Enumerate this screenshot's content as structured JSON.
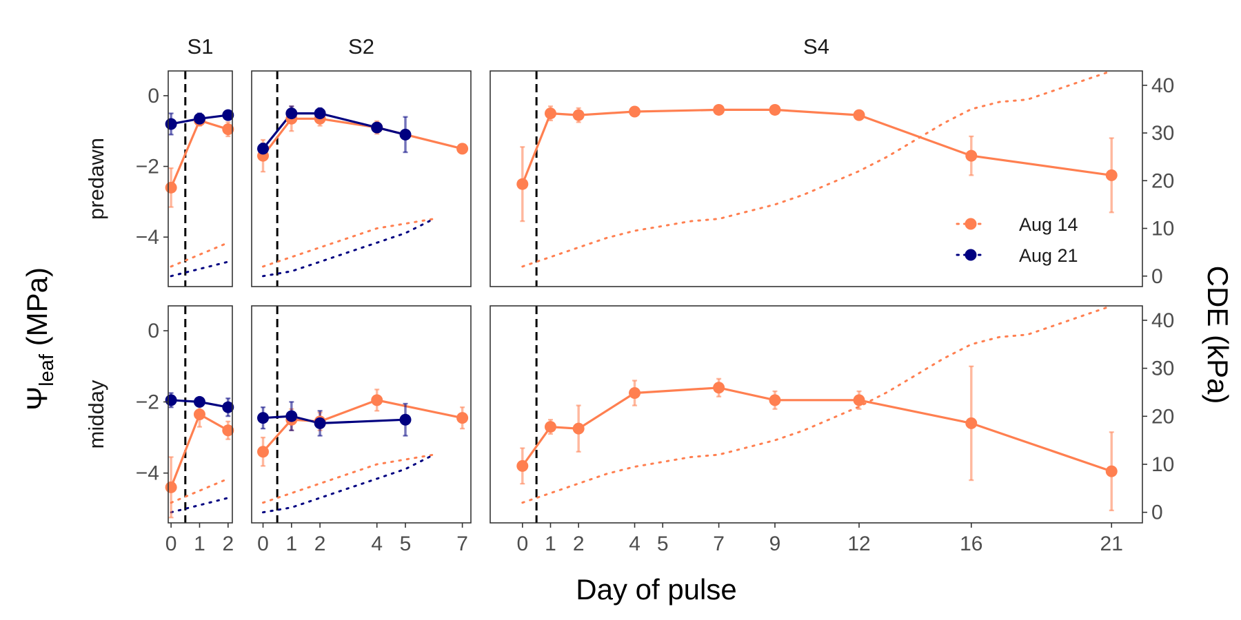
{
  "chart_data": {
    "type": "line",
    "xlabel": "Day of pulse",
    "ylabel": {
      "symbol": "Ψ",
      "subscript": "leaf",
      "unit": " (MPa)"
    },
    "ylabel_right": "CDE (kPa)",
    "ylim_left": [
      -5.4,
      0.7
    ],
    "ylim_right": [
      -2.2,
      43
    ],
    "yticks_left": [
      0,
      -2,
      -4
    ],
    "yticks_right": [
      0,
      10,
      20,
      30,
      40
    ],
    "rows": [
      "predawn",
      "midday"
    ],
    "grid": false,
    "legend_position": "right-inside",
    "legend": [
      {
        "name": "Aug 14",
        "color": "#FF7F50"
      },
      {
        "name": "Aug 21",
        "color": "#000080"
      }
    ],
    "sites": [
      {
        "name": "S1",
        "xlim": [
          -0.1,
          2.15
        ],
        "xticks": [
          0,
          1,
          2
        ],
        "pulse_day": 0.5,
        "series": [
          {
            "name": "Aug 14",
            "color": "#FF7F50",
            "panel": "predawn",
            "x": [
              0,
              1,
              2
            ],
            "y": [
              -2.6,
              -0.7,
              -0.95
            ],
            "err": [
              0.55,
              0.15,
              0.2
            ]
          },
          {
            "name": "Aug 21",
            "color": "#000080",
            "panel": "predawn",
            "x": [
              0,
              1,
              2
            ],
            "y": [
              -0.8,
              -0.65,
              -0.55
            ],
            "err": [
              0.3,
              0.15,
              0.12
            ]
          },
          {
            "name": "Aug 14",
            "color": "#FF7F50",
            "panel": "midday",
            "x": [
              0,
              1,
              2
            ],
            "y": [
              -4.4,
              -2.35,
              -2.8
            ],
            "err": [
              0.85,
              0.35,
              0.25
            ]
          },
          {
            "name": "Aug 21",
            "color": "#000080",
            "panel": "midday",
            "x": [
              0,
              1,
              2
            ],
            "y": [
              -1.95,
              -2.0,
              -2.15
            ],
            "err": [
              0.2,
              0.12,
              0.25
            ]
          }
        ],
        "cde": [
          {
            "name": "Aug 14",
            "color": "#FF7F50",
            "x": [
              0,
              2
            ],
            "y": [
              2,
              7
            ]
          },
          {
            "name": "Aug 21",
            "color": "#000080",
            "x": [
              0,
              2
            ],
            "y": [
              0,
              3
            ]
          }
        ]
      },
      {
        "name": "S2",
        "xlim": [
          -0.4,
          7.3
        ],
        "xticks": [
          0,
          1,
          2,
          4,
          5,
          7
        ],
        "pulse_day": 0.5,
        "series": [
          {
            "name": "Aug 14",
            "color": "#FF7F50",
            "panel": "predawn",
            "x": [
              0,
              1,
              2,
              4,
              7
            ],
            "y": [
              -1.7,
              -0.65,
              -0.65,
              -0.9,
              -1.5
            ],
            "err": [
              0.45,
              0.35,
              0.2,
              0.18,
              0.08
            ]
          },
          {
            "name": "Aug 21",
            "color": "#000080",
            "panel": "predawn",
            "x": [
              0,
              1,
              2,
              4,
              5
            ],
            "y": [
              -1.5,
              -0.5,
              -0.5,
              -0.9,
              -1.1
            ],
            "err": [
              0.15,
              0.2,
              0.15,
              0.12,
              0.5
            ]
          },
          {
            "name": "Aug 14",
            "color": "#FF7F50",
            "panel": "midday",
            "x": [
              0,
              1,
              2,
              4,
              7
            ],
            "y": [
              -3.4,
              -2.5,
              -2.55,
              -1.95,
              -2.45
            ],
            "err": [
              0.4,
              0.3,
              0.25,
              0.3,
              0.3
            ]
          },
          {
            "name": "Aug 21",
            "color": "#000080",
            "panel": "midday",
            "x": [
              0,
              1,
              2,
              5
            ],
            "y": [
              -2.45,
              -2.4,
              -2.6,
              -2.5
            ],
            "err": [
              0.3,
              0.4,
              0.35,
              0.45
            ]
          }
        ],
        "cde": [
          {
            "name": "Aug 14",
            "color": "#FF7F50",
            "x": [
              0,
              1,
              2,
              3,
              4,
              5,
              6
            ],
            "y": [
              2,
              4,
              6,
              8,
              10,
              11,
              12
            ]
          },
          {
            "name": "Aug 21",
            "color": "#000080",
            "x": [
              0,
              1,
              2,
              3,
              4,
              5,
              6
            ],
            "y": [
              0,
              1,
              3,
              5,
              7,
              9,
              12
            ]
          }
        ]
      },
      {
        "name": "S4",
        "xlim": [
          -1.15,
          22.1
        ],
        "xticks": [
          0,
          1,
          2,
          4,
          5,
          7,
          9,
          12,
          16,
          21
        ],
        "pulse_day": 0.5,
        "series": [
          {
            "name": "Aug 14",
            "color": "#FF7F50",
            "panel": "predawn",
            "x": [
              0,
              1,
              2,
              4,
              7,
              9,
              12,
              16,
              21
            ],
            "y": [
              -2.5,
              -0.5,
              -0.55,
              -0.45,
              -0.4,
              -0.4,
              -0.55,
              -1.7,
              -2.25
            ],
            "err": [
              1.05,
              0.2,
              0.2,
              0.1,
              0.1,
              0.12,
              0.1,
              0.55,
              1.05
            ]
          },
          {
            "name": "Aug 14",
            "color": "#FF7F50",
            "panel": "midday",
            "x": [
              0,
              1,
              2,
              4,
              7,
              9,
              12,
              16,
              21
            ],
            "y": [
              -3.8,
              -2.7,
              -2.75,
              -1.75,
              -1.6,
              -1.95,
              -1.95,
              -2.6,
              -3.95
            ],
            "err": [
              0.5,
              0.2,
              0.65,
              0.35,
              0.25,
              0.25,
              0.25,
              1.6,
              1.1
            ]
          }
        ],
        "cde": [
          {
            "name": "Aug 14",
            "color": "#FF7F50",
            "x": [
              0,
              1,
              2,
              3,
              4,
              5,
              6,
              7,
              8,
              9,
              10,
              11,
              12,
              13,
              14,
              15,
              16,
              17,
              18,
              19,
              20,
              21
            ],
            "y": [
              2,
              4,
              6,
              8,
              9.5,
              10.5,
              11.5,
              12,
              13.5,
              15,
              17,
              19.5,
              22,
              25,
              28.5,
              32,
              35,
              36.5,
              37,
              39,
              41,
              43
            ]
          }
        ]
      }
    ]
  }
}
